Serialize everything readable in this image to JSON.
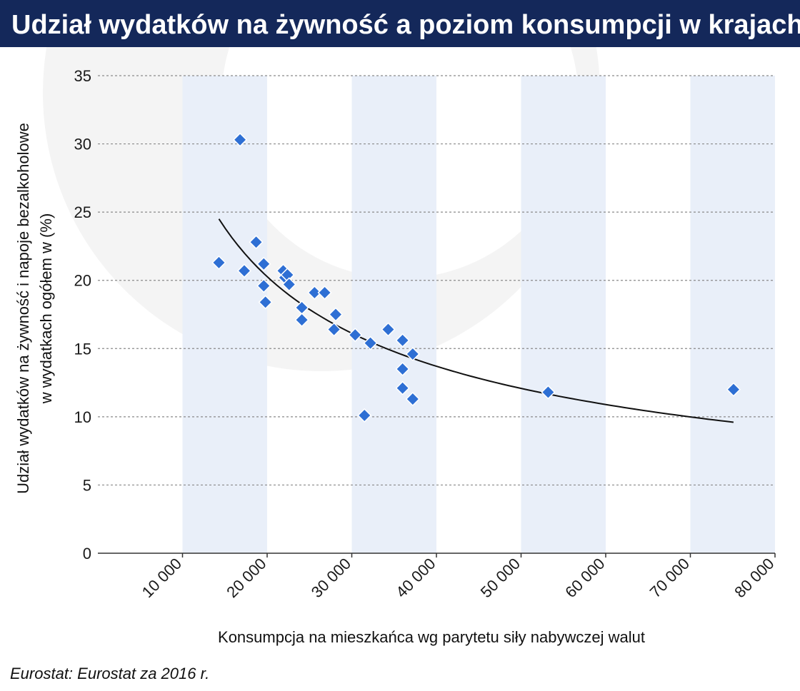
{
  "header": {
    "title": "Udział wydatków na żywność a poziom konsumpcji w krajach UE"
  },
  "source": "Eurostat: Eurostat za 2016 r.",
  "colors": {
    "header_bg": "#14285a",
    "header_text": "#ffffff",
    "band": "#e9eff9",
    "marker": "#2e6fd4",
    "marker_stroke": "#ffffff",
    "trend": "#111111",
    "grid": "#8a8a8a",
    "watermark": "#f4f4f4"
  },
  "chart_data": {
    "type": "scatter",
    "xlabel": "Konsumpcja na mieszkańca wg parytetu siły nabywczej walut",
    "ylabel": [
      "Udział wydatków na żywność i napoje bezalkoholowe",
      "w wydatkach ogółem w (%)"
    ],
    "xlim": [
      0,
      80000
    ],
    "ylim": [
      0,
      35
    ],
    "x_ticks": [
      10000,
      20000,
      30000,
      40000,
      50000,
      60000,
      70000,
      80000
    ],
    "x_tick_labels": [
      "10 000",
      "20 000",
      "30 000",
      "40 000",
      "50 000",
      "60 000",
      "70 000",
      "80 000"
    ],
    "y_ticks": [
      0,
      5,
      10,
      15,
      20,
      25,
      30,
      35
    ],
    "y_tick_labels": [
      "0",
      "5",
      "10",
      "15",
      "20",
      "25",
      "30",
      "35"
    ],
    "grid": "horizontal dashed",
    "shaded_bands": [
      [
        10000,
        20000
      ],
      [
        30000,
        40000
      ],
      [
        50000,
        60000
      ],
      [
        70000,
        80000
      ]
    ],
    "series": [
      {
        "marker": "diamond",
        "points": [
          {
            "x": 14300,
            "y": 21.3
          },
          {
            "x": 16800,
            "y": 30.3
          },
          {
            "x": 17300,
            "y": 20.7
          },
          {
            "x": 18700,
            "y": 22.8
          },
          {
            "x": 19600,
            "y": 21.2
          },
          {
            "x": 19600,
            "y": 19.6
          },
          {
            "x": 19800,
            "y": 18.4
          },
          {
            "x": 21900,
            "y": 20.7
          },
          {
            "x": 22100,
            "y": 20.2
          },
          {
            "x": 22400,
            "y": 20.4
          },
          {
            "x": 22600,
            "y": 19.7
          },
          {
            "x": 24100,
            "y": 18.0
          },
          {
            "x": 24100,
            "y": 17.1
          },
          {
            "x": 25600,
            "y": 19.1
          },
          {
            "x": 26800,
            "y": 19.1
          },
          {
            "x": 27900,
            "y": 16.4
          },
          {
            "x": 28100,
            "y": 17.5
          },
          {
            "x": 30400,
            "y": 16.0
          },
          {
            "x": 31500,
            "y": 10.1
          },
          {
            "x": 32200,
            "y": 15.4
          },
          {
            "x": 34300,
            "y": 16.4
          },
          {
            "x": 36000,
            "y": 15.6
          },
          {
            "x": 36000,
            "y": 13.5
          },
          {
            "x": 36000,
            "y": 12.1
          },
          {
            "x": 37200,
            "y": 14.6
          },
          {
            "x": 37200,
            "y": 11.3
          },
          {
            "x": 53200,
            "y": 11.8
          },
          {
            "x": 75100,
            "y": 12.0
          }
        ]
      }
    ],
    "trendline": {
      "type": "power",
      "x_range": [
        14300,
        75100
      ],
      "y_start": 24.5,
      "y_end": 9.6
    }
  }
}
